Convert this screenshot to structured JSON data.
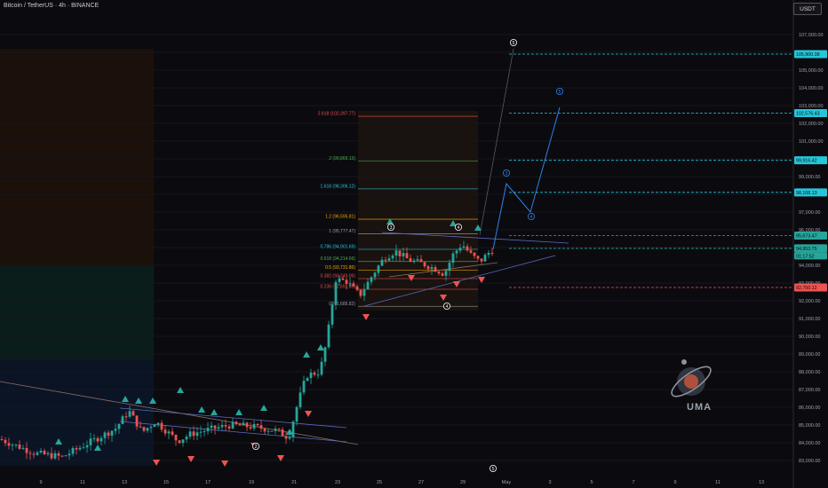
{
  "header": {
    "title": "Bitcoin / TetherUS · 4h · BINANCE",
    "currency": "USDT"
  },
  "colors": {
    "background": "#0b0b0f",
    "candle_up": "#26a69a",
    "candle_down": "#ef5350",
    "wave_projection": "#2f80ed",
    "fib_orange": "#f7a600",
    "fib_red": "#e8514f",
    "fib_green": "#4caf50",
    "fib_cyan": "#26c6da"
  },
  "chart_data": {
    "type": "candlestick",
    "title": "Bitcoin / TetherUS · 4h · BINANCE",
    "x_labels": [
      "9",
      "11",
      "13",
      "15",
      "17",
      "19",
      "21",
      "23",
      "25",
      "27",
      "29",
      "May",
      "3",
      "5",
      "7",
      "9",
      "11",
      "13"
    ],
    "y_ticks": [
      83000,
      84000,
      85000,
      86000,
      87000,
      88000,
      89000,
      90000,
      91000,
      92000,
      93000,
      94000,
      95000,
      96000,
      97000,
      98000,
      99000,
      100000,
      101000,
      102000,
      103000,
      104000,
      105000,
      106000,
      107000
    ],
    "y_tick_labels": [
      "83,000.00",
      "84,000.00",
      "85,000.00",
      "86,000.00",
      "87,000.00",
      "88,000.00",
      "89,000.00",
      "90,000.00",
      "91,000.00",
      "92,000.00",
      "93,000.00",
      "94,000.00",
      "95,000.00",
      "96,000.00",
      "97,000.00",
      "98,000.00",
      "99,000.00",
      "100,000.00",
      "101,000.00",
      "102,000.00",
      "103,000.00",
      "104,000.00",
      "105,000.00",
      "106,000.00",
      "107,000.00"
    ],
    "ylim": [
      82700,
      108200
    ],
    "fib_levels": [
      {
        "label": "2.618 (102,397.77)",
        "price": 102397.77,
        "color": "#e8514f"
      },
      {
        "label": "2 (99,869.13)",
        "price": 99869.13,
        "color": "#4caf50"
      },
      {
        "label": "1.618 (98,306.12)",
        "price": 98306.12,
        "color": "#26c6da"
      },
      {
        "label": "1.2 (96,595.81)",
        "price": 96595.81,
        "color": "#f7a600"
      },
      {
        "label": "1 (95,777.47)",
        "price": 95777.47,
        "color": "#9e9e9e"
      },
      {
        "label": "0.786 (94,901.69)",
        "price": 94901.69,
        "color": "#26c6da"
      },
      {
        "label": "0.618 (94,214.66)",
        "price": 94214.66,
        "color": "#4caf50"
      },
      {
        "label": "0.5 (93,731.86)",
        "price": 93731.86,
        "color": "#f7a600"
      },
      {
        "label": "0.382 (93,249.06)",
        "price": 93249.06,
        "color": "#e8514f"
      },
      {
        "label": "0.236 (92,651.85)",
        "price": 92651.85,
        "color": "#e8514f"
      },
      {
        "label": "0 (91,685.82)",
        "price": 91685.82,
        "color": "#9e9e9e"
      }
    ],
    "price_tags": [
      {
        "label": "105,900.38",
        "price": 105900.38,
        "color": "#26c6da"
      },
      {
        "label": "102,576.43",
        "price": 102576.43,
        "color": "#26c6da"
      },
      {
        "label": "99,916.42",
        "price": 99916.42,
        "color": "#26c6da"
      },
      {
        "label": "98,108.13",
        "price": 98108.13,
        "color": "#26c6da"
      },
      {
        "label": "95,673.47",
        "price": 95673.47,
        "color": "#26a69a"
      },
      {
        "label": "94,953.75",
        "price": 94953.75,
        "color": "#26a69a",
        "sub": "01:17:52"
      },
      {
        "label": "92,750.12",
        "price": 92750.12,
        "color": "#ef5350"
      }
    ],
    "wave_projection": [
      {
        "x": 555,
        "price": 94900
      },
      {
        "x": 570,
        "price": 98600
      },
      {
        "x": 597,
        "price": 97000
      },
      {
        "x": 630,
        "price": 102900
      }
    ],
    "wave_labels": [
      "5",
      "5",
      "3",
      "4",
      "3",
      "4",
      "4",
      "2",
      "5"
    ]
  },
  "watermark": {
    "text": "UMA"
  }
}
